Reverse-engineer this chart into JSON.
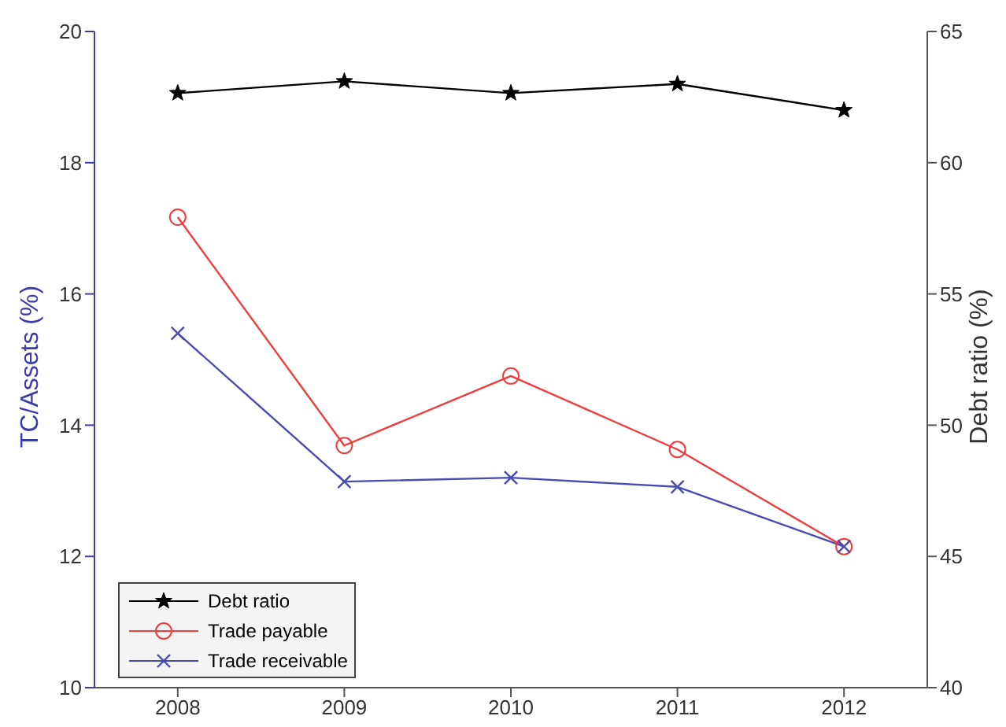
{
  "chart_data": {
    "type": "line",
    "xlabel": null,
    "ylabel": "TC/Assets (%)",
    "y2label": "Debt ratio (%)",
    "x": [
      2008,
      2009,
      2010,
      2011,
      2012
    ],
    "xlim": [
      2007.5,
      2012.5
    ],
    "xticks": [
      2008,
      2009,
      2010,
      2011,
      2012
    ],
    "ylim": [
      10,
      20
    ],
    "yticks": [
      10,
      12,
      14,
      16,
      18,
      20
    ],
    "y2lim": [
      40,
      65
    ],
    "y2ticks": [
      40,
      45,
      50,
      55,
      60,
      65
    ],
    "series": [
      {
        "name": "Debt ratio",
        "color": "#000000",
        "axis": "y2",
        "marker": "star",
        "values": [
          62.65,
          63.1,
          62.65,
          63.0,
          62.0
        ]
      },
      {
        "name": "Trade payable",
        "color": "#f03c3c",
        "marker": "circle",
        "values": [
          17.17,
          13.69,
          14.75,
          13.63,
          12.15
        ]
      },
      {
        "name": "Trade receivable",
        "color": "#4a4ab4",
        "marker": "cross",
        "values": [
          15.4,
          13.14,
          13.2,
          13.06,
          12.15
        ]
      }
    ],
    "grid": false,
    "legend": "bottom left",
    "line_style": "solid"
  }
}
